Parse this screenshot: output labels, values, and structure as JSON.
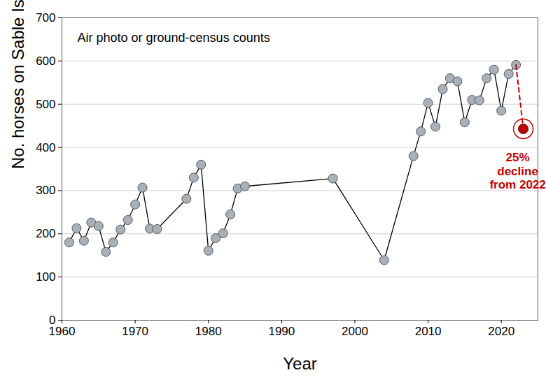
{
  "chart_data": {
    "type": "line",
    "x_label": "Year",
    "y_label": "No. horses on Sable Island",
    "annotations": [
      "Air photo or ground-census counts",
      "25%\ndecline\nfrom 2022"
    ],
    "x": [
      1961,
      1962,
      1963,
      1964,
      1965,
      1966,
      1967,
      1968,
      1969,
      1970,
      1971,
      1972,
      1973,
      1977,
      1978,
      1979,
      1980,
      1981,
      1982,
      1983,
      1984,
      1985,
      1997,
      2004,
      2008,
      2009,
      2010,
      2011,
      2012,
      2013,
      2014,
      2015,
      2016,
      2017,
      2018,
      2019,
      2020,
      2021,
      2022,
      2023
    ],
    "series": [
      {
        "color": "#a9b0b8",
        "marker": "circle",
        "line_style": "solid",
        "values": [
          180,
          213,
          184,
          226,
          218,
          158,
          180,
          210,
          232,
          268,
          307,
          212,
          211,
          281,
          330,
          360,
          161,
          190,
          201,
          245,
          305,
          310,
          328,
          139,
          380,
          437,
          503,
          448,
          535,
          560,
          553,
          458,
          510,
          509,
          560,
          580,
          485,
          570,
          591,
          null
        ]
      },
      {
        "color": "#c00000",
        "marker": "circle",
        "line_style": "dashed",
        "values": [
          null,
          null,
          null,
          null,
          null,
          null,
          null,
          null,
          null,
          null,
          null,
          null,
          null,
          null,
          null,
          null,
          null,
          null,
          null,
          null,
          null,
          null,
          null,
          null,
          null,
          null,
          null,
          null,
          null,
          null,
          null,
          null,
          null,
          null,
          null,
          null,
          null,
          null,
          null,
          443
        ]
      }
    ],
    "xlim": [
      1960,
      2025
    ],
    "xticks": [
      1960,
      1970,
      1980,
      1990,
      2000,
      2010,
      2020
    ],
    "ylim": [
      0,
      700
    ],
    "yticks": [
      0,
      100,
      200,
      300,
      400,
      500,
      600,
      700
    ],
    "grid": true
  }
}
